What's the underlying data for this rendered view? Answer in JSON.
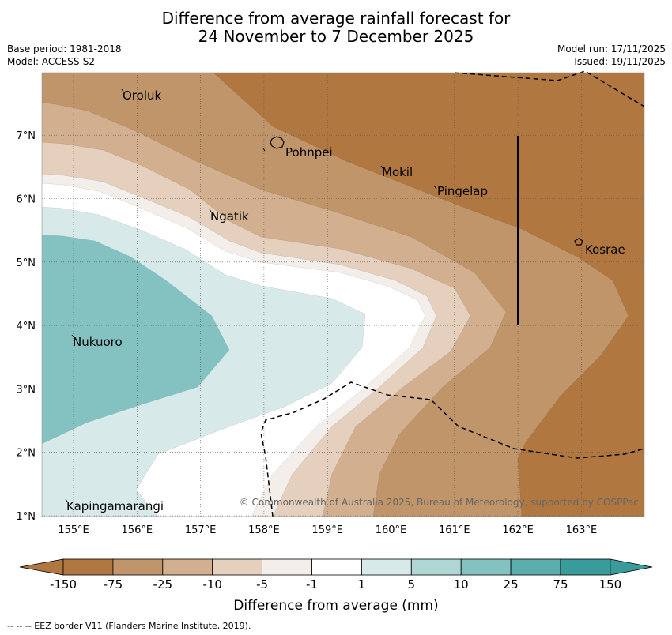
{
  "title": {
    "line1": "Difference from average rainfall forecast for",
    "line2": "24 November to 7 December 2025"
  },
  "meta": {
    "base_period": "Base period: 1981-2018",
    "model": "Model: ACCESS-S2",
    "model_run": "Model run: 17/11/2025",
    "issued": "Issued: 19/11/2025"
  },
  "map": {
    "lat_ticks": [
      "1°N",
      "2°N",
      "3°N",
      "4°N",
      "5°N",
      "6°N",
      "7°N"
    ],
    "lon_ticks": [
      "155°E",
      "156°E",
      "157°E",
      "158°E",
      "159°E",
      "160°E",
      "161°E",
      "162°E",
      "163°E"
    ],
    "places": [
      "Oroluk",
      "Pohnpei",
      "Mokil",
      "Pingelap",
      "Ngatik",
      "Kosrae",
      "Nukuoro",
      "Kapingamarangi"
    ],
    "copyright": "© Commonwealth of Australia 2025, Bureau of Meteorology, supported by COSPPac"
  },
  "colorbar": {
    "colors": [
      "#b07840",
      "#c0956a",
      "#d2b08f",
      "#e4d0bd",
      "#f3eee9",
      "#ffffff",
      "#d7e9e9",
      "#afd7d6",
      "#84c2c1",
      "#5baeac",
      "#3a9c9a"
    ],
    "labels": [
      "-150",
      "-75",
      "-25",
      "-10",
      "-5",
      "-1",
      "1",
      "5",
      "10",
      "25",
      "75",
      "150"
    ],
    "title": "Difference from average (mm)"
  },
  "footnote": "--  --  -- EEZ border V11 (Flanders Marine Institute, 2019)."
}
